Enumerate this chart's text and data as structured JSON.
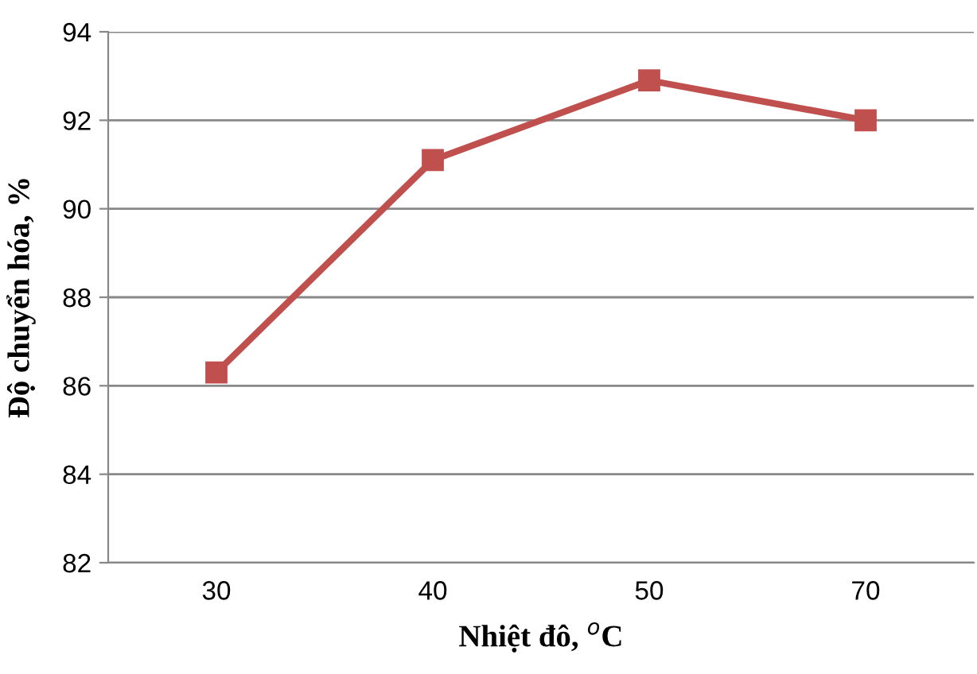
{
  "chart_data": {
    "type": "line",
    "xlabel": "Nhiệt đô, $^{o}$C",
    "ylabel": "Độ chuyển hóa, %",
    "categories": [
      "30",
      "40",
      "50",
      "70"
    ],
    "series": [
      {
        "color": "#c0504d",
        "values": [
          86.3,
          91.1,
          92.9,
          92.0
        ]
      }
    ],
    "ylim": [
      82,
      94
    ],
    "yticks": [
      82,
      84,
      86,
      88,
      90,
      92,
      94
    ],
    "grid": "y",
    "marker": "square",
    "line_style": "solid"
  }
}
